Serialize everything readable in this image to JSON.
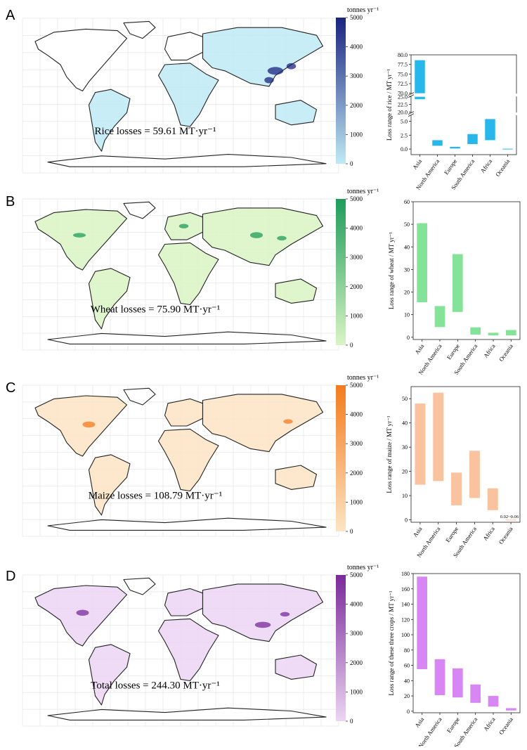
{
  "chart_data": [
    {
      "panel": "A",
      "type": "map+bar",
      "map_caption": "Rice losses = 59.61 MT·yr⁻¹",
      "colorbar": {
        "unit_label": "tonnes yr⁻¹",
        "ticks": [
          "5000",
          "4000",
          "3000",
          "2000",
          "1000",
          "0"
        ],
        "color_low": "#bfeaf5",
        "color_high": "#1a237e"
      },
      "bar_color": "#1cb3ea",
      "ylabel": "Loss range of rice / MT yr⁻¹",
      "broken_axis": true,
      "segments": [
        {
          "min": 70.0,
          "max": 80.0,
          "ticks": [
            70.0,
            72.5,
            75.0,
            77.5,
            80.0
          ]
        },
        {
          "min": 20.0,
          "max": 25.0,
          "ticks": [
            20.0,
            22.5,
            25.0
          ]
        },
        {
          "min": -1.0,
          "max": 6.0,
          "ticks": [
            0.0,
            2.5,
            5.0
          ]
        }
      ],
      "tick_decimals": 1,
      "categories": [
        "Asia",
        "North America",
        "Europe",
        "South America",
        "Africa",
        "Oceania"
      ],
      "ranges": [
        [
          24.2,
          78.6
        ],
        [
          0.6,
          1.6
        ],
        [
          0.1,
          0.4
        ],
        [
          0.9,
          2.7
        ],
        [
          1.6,
          5.4
        ],
        [
          0.02,
          0.06
        ]
      ],
      "annotation": ""
    },
    {
      "panel": "B",
      "type": "map+bar",
      "map_caption": "Wheat losses = 75.90 MT·yr⁻¹",
      "colorbar": {
        "unit_label": "tonnes yr⁻¹",
        "ticks": [
          "5000",
          "4000",
          "3000",
          "2000",
          "1000",
          "0"
        ],
        "color_low": "#d9f5c4",
        "color_high": "#1e9c5a"
      },
      "bar_color": "#6fde86",
      "ylabel": "Loss range of wheat / MT yr⁻¹",
      "broken_axis": false,
      "segments": [
        {
          "min": -1,
          "max": 60,
          "ticks": [
            0,
            10,
            20,
            30,
            40,
            50,
            60
          ]
        }
      ],
      "tick_decimals": 0,
      "categories": [
        "Asia",
        "North America",
        "Europe",
        "South America",
        "Africa",
        "Oceania"
      ],
      "ranges": [
        [
          15.5,
          50.5
        ],
        [
          4.5,
          13.8
        ],
        [
          11.2,
          36.8
        ],
        [
          1.2,
          4.4
        ],
        [
          0.8,
          2.0
        ],
        [
          0.8,
          3.2
        ]
      ],
      "annotation": ""
    },
    {
      "panel": "C",
      "type": "map+bar",
      "map_caption": "Maize losses = 108.79 MT·yr⁻¹",
      "colorbar": {
        "unit_label": "tonnes yr⁻¹",
        "ticks": [
          "5000",
          "4000",
          "3000",
          "2000",
          "1000",
          "0"
        ],
        "color_low": "#fde4c4",
        "color_high": "#f37b1d"
      },
      "bar_color": "#f9b98f",
      "ylabel": "Loss range of maize / MT yr⁻¹",
      "broken_axis": false,
      "segments": [
        {
          "min": -1,
          "max": 55,
          "ticks": [
            0,
            10,
            20,
            30,
            40,
            50
          ]
        }
      ],
      "tick_decimals": 0,
      "categories": [
        "Asia",
        "North America",
        "Europe",
        "South America",
        "Africa",
        "Oceania"
      ],
      "ranges": [
        [
          14.5,
          48.0
        ],
        [
          16.0,
          52.5
        ],
        [
          6.0,
          19.5
        ],
        [
          9.0,
          28.5
        ],
        [
          4.0,
          13.0
        ],
        [
          0.02,
          0.06
        ]
      ],
      "annotation": "0.02~0.06"
    },
    {
      "panel": "D",
      "type": "map+bar",
      "map_caption": "Total losses = 244.30 MT·yr⁻¹",
      "colorbar": {
        "unit_label": "tonnes yr⁻¹",
        "ticks": [
          "5000",
          "4000",
          "3000",
          "2000",
          "1000",
          "0"
        ],
        "color_low": "#ecd5f3",
        "color_high": "#7a2a99"
      },
      "bar_color": "#d67ff2",
      "ylabel": "Loss range of these three crops / MT yr⁻¹",
      "broken_axis": false,
      "segments": [
        {
          "min": -2,
          "max": 180,
          "ticks": [
            0,
            20,
            40,
            60,
            80,
            100,
            120,
            140,
            160,
            180
          ]
        }
      ],
      "tick_decimals": 0,
      "categories": [
        "Asia",
        "North America",
        "Europe",
        "South America",
        "Africa",
        "Oceania"
      ],
      "ranges": [
        [
          55.0,
          176.0
        ],
        [
          21.0,
          68.0
        ],
        [
          18.0,
          56.0
        ],
        [
          11.0,
          35.0
        ],
        [
          6.0,
          20.0
        ],
        [
          1.0,
          4.0
        ]
      ],
      "annotation": ""
    }
  ]
}
